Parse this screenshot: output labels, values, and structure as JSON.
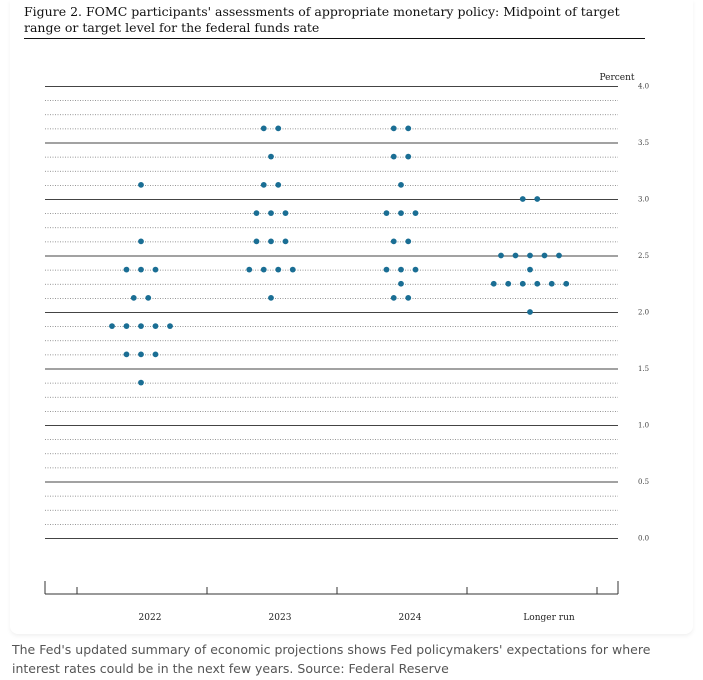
{
  "figure": {
    "title": "Figure 2.  FOMC participants' assessments of appropriate monetary policy: Midpoint of target range or target level for the federal funds rate"
  },
  "chart_data": {
    "type": "scatter",
    "style": "dot plot",
    "dot_color": "#1a6e94",
    "unit_label": "Percent",
    "categories": [
      "2022",
      "2023",
      "2024",
      "Longer run"
    ],
    "y_ticks": [
      "4.0",
      "3.5",
      "3.0",
      "2.5",
      "2.0",
      "1.5",
      "1.0",
      "0.5",
      "0.0"
    ],
    "ylim": [
      0,
      4
    ],
    "grid": "dotted lines every 0.125, solid lines every 0.5",
    "points": [
      {
        "category": "2022",
        "values": [
          {
            "y": 3.125,
            "count": 1
          },
          {
            "y": 2.625,
            "count": 1
          },
          {
            "y": 2.375,
            "count": 3
          },
          {
            "y": 2.125,
            "count": 2
          },
          {
            "y": 1.875,
            "count": 5
          },
          {
            "y": 1.625,
            "count": 3
          },
          {
            "y": 1.375,
            "count": 1
          }
        ]
      },
      {
        "category": "2023",
        "values": [
          {
            "y": 3.625,
            "count": 2
          },
          {
            "y": 3.375,
            "count": 1
          },
          {
            "y": 3.125,
            "count": 2
          },
          {
            "y": 2.875,
            "count": 3
          },
          {
            "y": 2.625,
            "count": 3
          },
          {
            "y": 2.375,
            "count": 4
          },
          {
            "y": 2.125,
            "count": 1
          }
        ]
      },
      {
        "category": "2024",
        "values": [
          {
            "y": 3.625,
            "count": 2
          },
          {
            "y": 3.375,
            "count": 2
          },
          {
            "y": 3.125,
            "count": 1
          },
          {
            "y": 2.875,
            "count": 3
          },
          {
            "y": 2.625,
            "count": 2
          },
          {
            "y": 2.375,
            "count": 3
          },
          {
            "y": 2.25,
            "count": 1
          },
          {
            "y": 2.125,
            "count": 2
          }
        ]
      },
      {
        "category": "Longer run",
        "values": [
          {
            "y": 3.0,
            "count": 2
          },
          {
            "y": 2.5,
            "count": 5
          },
          {
            "y": 2.375,
            "count": 1
          },
          {
            "y": 2.25,
            "count": 6
          },
          {
            "y": 2.0,
            "count": 1
          }
        ]
      }
    ]
  },
  "caption": "The Fed's updated summary of economic projections shows Fed policymakers' expectations for where interest rates could be in the next few years. Source: Federal Reserve"
}
